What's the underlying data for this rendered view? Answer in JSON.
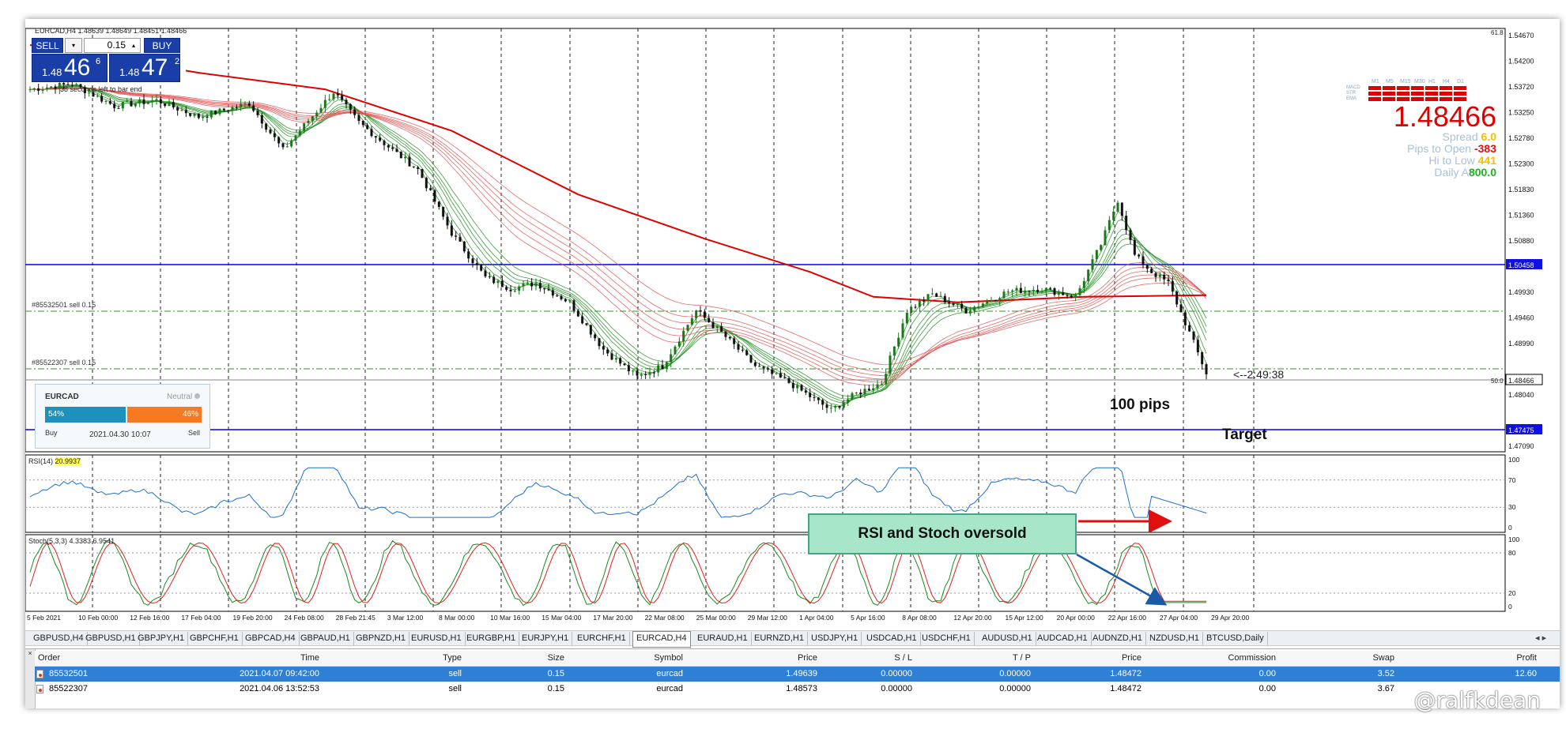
{
  "chart": {
    "header": "EURCAD,H4 1.48639 1.48649 1.48451 1.48466",
    "countdown_left": "38 seconds left to bar end",
    "price_axis": [
      "1.54670",
      "1.54200",
      "1.53720",
      "1.53250",
      "1.52780",
      "1.52300",
      "1.51830",
      "1.51360",
      "1.50880",
      "1.50458",
      "1.49930",
      "1.49460",
      "1.48990",
      "1.48466",
      "1.48040",
      "1.47475",
      "1.47090"
    ],
    "hlines": {
      "upper": "1.50458",
      "current": "1.48466",
      "target": "1.47475"
    },
    "axis_scale_label": "61.8",
    "axis_scale_label2": "50.0",
    "orders": [
      "#85532501 sell 0.15",
      "#85522307 sell 0.15"
    ],
    "time_axis": [
      "5 Feb 2021",
      "10 Feb 00:00",
      "12 Feb 16:00",
      "17 Feb 04:00",
      "19 Feb 20:00",
      "24 Feb 08:00",
      "28 Feb 21:45",
      "3 Mar 12:00",
      "8 Mar 00:00",
      "10 Mar 16:00",
      "15 Mar 04:00",
      "17 Mar 20:00",
      "22 Mar 08:00",
      "25 Mar 00:00",
      "29 Mar 12:00",
      "1 Apr 04:00",
      "5 Apr 16:00",
      "8 Apr 08:00",
      "12 Apr 20:00",
      "15 Apr 12:00",
      "20 Apr 00:00",
      "22 Apr 16:00",
      "27 Apr 04:00",
      "29 Apr 20:00"
    ],
    "timer": "<--2:49:38",
    "pips_label": "100 pips",
    "target_label": "Target",
    "callout": "RSI and Stoch oversold",
    "colors": {
      "bg": "#ffffff",
      "grid": "#000000",
      "ema200": "#e00000",
      "bull": "#1a7a1a",
      "bear": "#d02020",
      "hline": "#0000ff",
      "rsi": "#1e6fd0",
      "stoch_main": "#1a8a1a",
      "stoch_signal": "#e02020"
    }
  },
  "oct": {
    "sell": "SELL",
    "buy": "BUY",
    "lot": "0.15",
    "bid_prefix": "1.48",
    "bid_big": "46",
    "bid_sup": "6",
    "ask_prefix": "1.48",
    "ask_big": "47",
    "ask_sup": "2"
  },
  "info_panel": {
    "timeframes": [
      "M1",
      "M5",
      "M15",
      "M30",
      "H1",
      "H4",
      "D1"
    ],
    "indicators": [
      "MACD",
      "STR",
      "EMA"
    ],
    "price": "1.48466",
    "spread_label": "Spread",
    "spread": "6.0",
    "pips_open_label": "Pips to Open",
    "pips_open": "-383",
    "hi_low_label": "Hi to Low",
    "hi_low": "441",
    "daily_label": "Daily A",
    "daily": "800.0"
  },
  "sentiment": {
    "symbol": "EURCAD",
    "status": "Neutral",
    "buy_pct": "54%",
    "sell_pct": "46%",
    "buy_label": "Buy",
    "sell_label": "Sell",
    "date": "2021.04.30 10:07"
  },
  "rsi": {
    "label": "RSI(14)",
    "value": "20.9937",
    "levels": [
      "100",
      "70",
      "30",
      "0"
    ]
  },
  "stoch": {
    "label": "Stoch(5,3,3) 4.3383 6.9541",
    "levels": [
      "100",
      "80",
      "20",
      "0"
    ]
  },
  "tabs": [
    "GBPUSD,H4",
    "GBPUSD,H1",
    "GBPJPY,H1",
    "GBPCHF,H1",
    "GBPCAD,H4",
    "GBPAUD,H1",
    "GBPNZD,H1",
    "EURUSD,H1",
    "EURGBP,H1",
    "EURJPY,H1",
    "EURCHF,H1",
    "EURCAD,H4",
    "EURAUD,H1",
    "EURNZD,H1",
    "USDJPY,H1",
    "USDCAD,H1",
    "USDCHF,H1",
    "AUDUSD,H1",
    "AUDCAD,H1",
    "AUDNZD,H1",
    "NZDUSD,H1",
    "BTCUSD,Daily"
  ],
  "tab_nav": "◂ ▸",
  "terminal": {
    "close": "×",
    "columns": [
      "Order",
      "Time",
      "Type",
      "Size",
      "Symbol",
      "Price",
      "S / L",
      "T / P",
      "Price",
      "Commission",
      "Swap",
      "Profit"
    ],
    "rows": [
      [
        "85532501",
        "2021.04.07 09:42:00",
        "sell",
        "0.15",
        "eurcad",
        "1.49639",
        "0.00000",
        "0.00000",
        "1.48472",
        "0.00",
        "3.52",
        "12.60"
      ],
      [
        "85522307",
        "2021.04.06 13:52:53",
        "sell",
        "0.15",
        "eurcad",
        "1.48573",
        "0.00000",
        "0.00000",
        "1.48472",
        "0.00",
        "3.67",
        ""
      ]
    ]
  },
  "watermark": "@ralfkdean"
}
